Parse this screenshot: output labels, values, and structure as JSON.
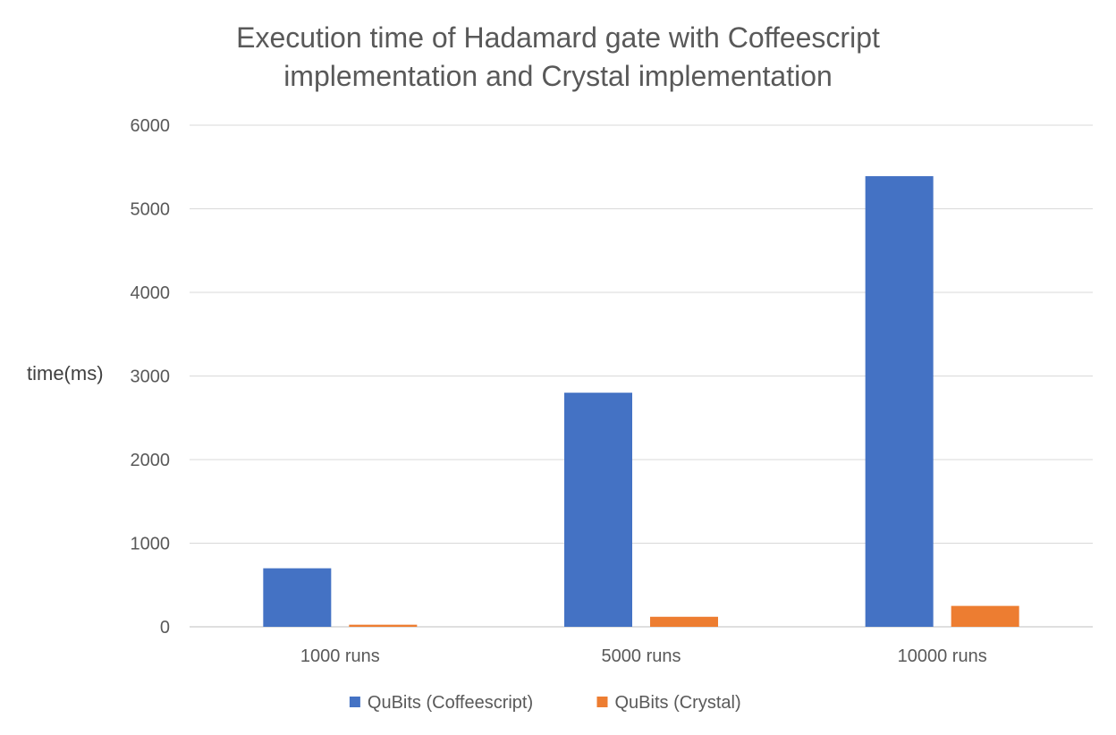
{
  "chart_data": {
    "type": "bar",
    "title_lines": [
      "Execution time of Hadamard gate with Coffeescript",
      "implementation and Crystal implementation"
    ],
    "ylabel": "time(ms)",
    "xlabel": "",
    "categories": [
      "1000 runs",
      "5000 runs",
      "10000 runs"
    ],
    "series": [
      {
        "name": "QuBits (Coffeescript)",
        "color": "#4472C4",
        "values": [
          700,
          2800,
          5390
        ]
      },
      {
        "name": "QuBits (Crystal)",
        "color": "#ED7D31",
        "values": [
          25,
          120,
          250
        ]
      }
    ],
    "ylim": [
      0,
      6000
    ],
    "yticks": [
      "0",
      "1000",
      "2000",
      "3000",
      "4000",
      "5000",
      "6000"
    ],
    "grid": true,
    "legend_position": "bottom"
  }
}
